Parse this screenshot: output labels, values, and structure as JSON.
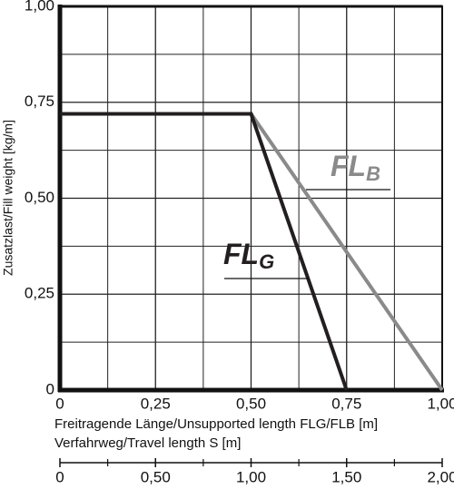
{
  "chart_data": {
    "type": "line",
    "xlabel": "Freitragende Länge/Unsupported length FLG/FLB [m]",
    "ylabel": "Zusatzlast/Fill weight [kg/m]",
    "x2label": "Verfahrweg/Travel length S [m]",
    "xlim": [
      0,
      1
    ],
    "ylim": [
      0,
      1
    ],
    "x2lim": [
      0,
      2
    ],
    "xticks": [
      {
        "value": 0,
        "label": "0"
      },
      {
        "value": 0.25,
        "label": "0,25"
      },
      {
        "value": 0.5,
        "label": "0,50"
      },
      {
        "value": 0.75,
        "label": "0,75"
      },
      {
        "value": 1,
        "label": "1,00"
      }
    ],
    "yticks": [
      {
        "value": 0,
        "label": "0"
      },
      {
        "value": 0.25,
        "label": "0,25"
      },
      {
        "value": 0.5,
        "label": "0,50"
      },
      {
        "value": 0.75,
        "label": "0,75"
      },
      {
        "value": 1,
        "label": "1,00"
      }
    ],
    "x2ticks": [
      {
        "value": 0,
        "label": "0"
      },
      {
        "value": 0.5,
        "label": "0,50"
      },
      {
        "value": 1,
        "label": "1,00"
      },
      {
        "value": 1.5,
        "label": "1,50"
      },
      {
        "value": 2,
        "label": "2,00"
      }
    ],
    "minor_xticks": [
      0.125,
      0.375,
      0.625,
      0.875
    ],
    "minor_yticks": [
      0.125,
      0.375,
      0.625,
      0.875
    ],
    "minor_x2ticks": [
      0.25,
      0.75,
      1.25,
      1.75
    ],
    "grid": true,
    "series": [
      {
        "name": "FL",
        "name_sub": "B",
        "color": "#8a8a8a",
        "x": [
          0,
          0.5,
          1
        ],
        "values": [
          0.72,
          0.72,
          0
        ]
      },
      {
        "name": "FL",
        "name_sub": "G",
        "color": "#231f20",
        "x": [
          0,
          0.5,
          0.75
        ],
        "values": [
          0.72,
          0.72,
          0
        ]
      }
    ]
  }
}
